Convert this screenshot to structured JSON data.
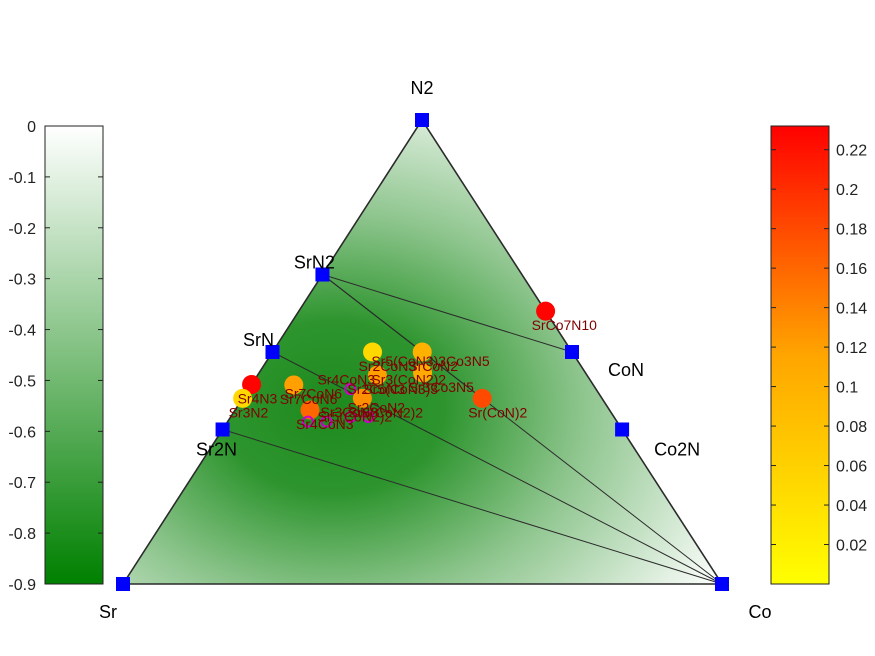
{
  "chart_data": {
    "type": "scatter",
    "subtype": "ternary-phase-diagram",
    "corners": {
      "left": "Sr",
      "right": "Co",
      "top": "N2"
    },
    "stable_phases": [
      {
        "name": "N2",
        "x_Co": 0.0,
        "x_N": 1.0,
        "label": "N2"
      },
      {
        "name": "SrN2",
        "x_Co": 0.0,
        "x_N": 0.667,
        "label": "SrN2"
      },
      {
        "name": "SrN",
        "x_Co": 0.0,
        "x_N": 0.5,
        "label": "SrN"
      },
      {
        "name": "Sr2N",
        "x_Co": 0.0,
        "x_N": 0.333,
        "label": "Sr2N"
      },
      {
        "name": "Sr",
        "x_Co": 0.0,
        "x_N": 0.0,
        "label": ""
      },
      {
        "name": "Co",
        "x_Co": 1.0,
        "x_N": 0.0,
        "label": ""
      },
      {
        "name": "CoN",
        "x_Co": 0.5,
        "x_N": 0.5,
        "label": "CoN"
      },
      {
        "name": "Co2N",
        "x_Co": 0.667,
        "x_N": 0.333,
        "label": "Co2N"
      }
    ],
    "tie_lines": [
      [
        "SrN2",
        "CoN"
      ],
      [
        "SrN2",
        "Co"
      ],
      [
        "SrN2",
        "SrN"
      ],
      [
        "SrN",
        "Co"
      ],
      [
        "Sr2N",
        "Co"
      ],
      [
        "SrN2",
        "Sr5(CoN2)2"
      ],
      [
        "SrN2",
        "Sr3CoN3"
      ],
      [
        "SrN2",
        "SrCoN2"
      ],
      [
        "SrN2",
        "Sr(CoN)2"
      ],
      [
        "Sr5(CoN2)2",
        "Sr2N"
      ]
    ],
    "unstable_phases": [
      {
        "name": "SrCo7N10",
        "x_Co": 0.412,
        "x_N": 0.588,
        "e_above_hull": 0.23,
        "label": "SrCo7N10"
      },
      {
        "name": "SrCoN2",
        "x_Co": 0.25,
        "x_N": 0.5,
        "e_above_hull": 0.1,
        "label": "SrCoN2"
      },
      {
        "name": "Sr3Co3N5",
        "x_Co": 0.273,
        "x_N": 0.455,
        "e_above_hull": 0.11,
        "label": "Sr3Co3N5"
      },
      {
        "name": "Sr(CoN)2",
        "x_Co": 0.4,
        "x_N": 0.4,
        "e_above_hull": 0.18,
        "label": "Sr(CoN)2"
      },
      {
        "name": "Sr5(CoN3)3",
        "x_Co": 0.2,
        "x_N": 0.45,
        "e_above_hull": 0.12,
        "label": "Sr5(CoN3)3"
      },
      {
        "name": "Sr3(CoN2)2",
        "x_Co": 0.2,
        "x_N": 0.4,
        "e_above_hull": 0.13,
        "label": "Sr3(CoN2)2"
      },
      {
        "name": "Sr4CoN3",
        "x_Co": 0.125,
        "x_N": 0.375,
        "e_above_hull": 0.16,
        "label": "Sr4CoN3"
      },
      {
        "name": "Sr7CoN6",
        "x_Co": 0.071,
        "x_N": 0.429,
        "e_above_hull": 0.12,
        "label": "Sr7CoN6"
      },
      {
        "name": "Sr2CoN3",
        "x_Co": 0.167,
        "x_N": 0.5,
        "e_above_hull": 0.05,
        "label": "Sr2CoN3"
      },
      {
        "name": "Sr4N3",
        "x_Co": 0.0,
        "x_N": 0.43,
        "e_above_hull": 0.23,
        "label": "Sr4N3"
      },
      {
        "name": "Sr3N2",
        "x_Co": 0.0,
        "x_N": 0.4,
        "e_above_hull": 0.05,
        "label": "Sr3N2"
      }
    ],
    "magenta_points": [
      {
        "x_Co": 0.134,
        "x_N": 0.35,
        "label": ""
      },
      {
        "x_Co": 0.165,
        "x_N": 0.35,
        "label": ""
      },
      {
        "x_Co": 0.2,
        "x_N": 0.36,
        "label": ""
      },
      {
        "x_Co": 0.23,
        "x_N": 0.36,
        "label": ""
      },
      {
        "x_Co": 0.17,
        "x_N": 0.42,
        "label": ""
      }
    ],
    "overlap_labels": [
      {
        "text": "Sr5(CoN3)3Co3N5",
        "x_Co": 0.18,
        "x_N": 0.47
      },
      {
        "text": "Sr3(CoN2)2",
        "x_Co": 0.2,
        "x_N": 0.43
      },
      {
        "text": "Sr4CoN3",
        "x_Co": 0.11,
        "x_N": 0.43
      },
      {
        "text": "Sr7CoN6",
        "x_Co": 0.07,
        "x_N": 0.4
      },
      {
        "text": "Sr2CoN3",
        "x_Co": 0.17,
        "x_N": 0.41
      },
      {
        "text": "Sr2CoN2",
        "x_Co": 0.19,
        "x_N": 0.37
      },
      {
        "text": "Sr3CoN3",
        "x_Co": 0.15,
        "x_N": 0.36
      },
      {
        "text": "Sr5(CoN2)2",
        "x_Co": 0.15,
        "x_N": 0.35
      }
    ],
    "left_colorbar": {
      "ticks": [
        "0",
        "-0.1",
        "-0.2",
        "-0.3",
        "-0.4",
        "-0.5",
        "-0.6",
        "-0.7",
        "-0.8",
        "-0.9"
      ],
      "range": [
        -0.9,
        0
      ],
      "color_low": "#008000",
      "color_high": "#ffffff"
    },
    "right_colorbar": {
      "ticks": [
        "0.02",
        "0.04",
        "0.06",
        "0.08",
        "0.1",
        "0.12",
        "0.14",
        "0.16",
        "0.18",
        "0.2",
        "0.22"
      ],
      "range": [
        0,
        0.232
      ],
      "color_low": "#ffff00",
      "color_mid": "#ffa500",
      "color_high": "#ff0000"
    },
    "colors": {
      "stable_marker": "#0000ff",
      "tie_line": "#2b2b2b",
      "label_unstable": "#800000",
      "magenta": "#cc00cc"
    }
  }
}
